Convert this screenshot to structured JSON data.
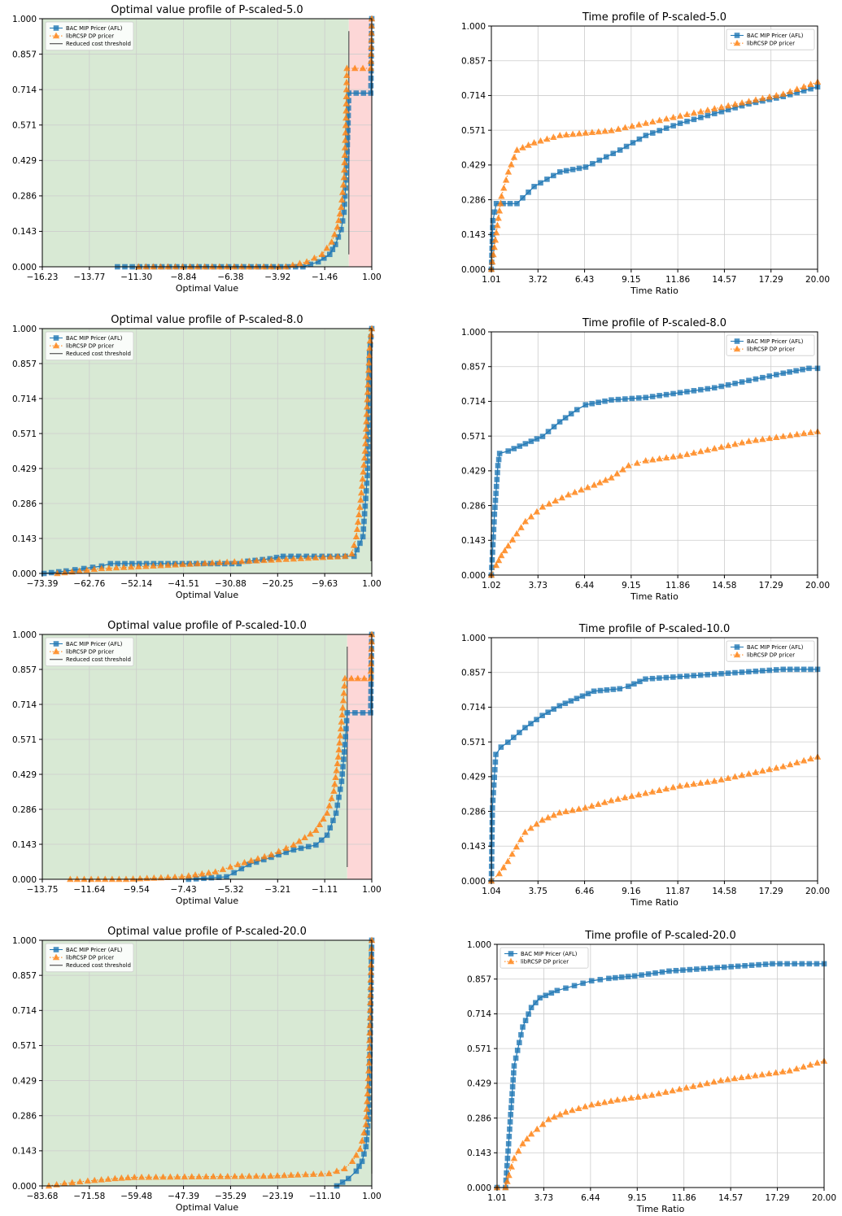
{
  "figure": {
    "background": "#ffffff"
  },
  "colors": {
    "bac": "#1f77b4",
    "lib": "#ff7f0e",
    "threshold": "#555555",
    "green_region": "#d8e9d4",
    "red_region": "#fdd7d7",
    "grid": "#cccccc"
  },
  "legend_labels": {
    "bac": "BAC MIP Pricer (AFL)",
    "lib": "libRCSP DP pricer",
    "threshold": "Reduced cost threshold"
  },
  "chart_data": [
    {
      "type": "line",
      "title": "Optimal value profile of P-scaled-5.0",
      "xlabel": "Optimal Value",
      "ylabel": "",
      "xticks": [
        "−16.23",
        "−13.77",
        "−11.30",
        "−8.84",
        "−6.38",
        "−3.92",
        "−1.46",
        "1.00"
      ],
      "yticks": [
        "0.000",
        "0.143",
        "0.286",
        "0.429",
        "0.571",
        "0.714",
        "0.857",
        "1.000"
      ],
      "xlim": [
        -16.23,
        1.0
      ],
      "ylim": [
        0,
        1
      ],
      "grid": true,
      "legend": "top-left",
      "threshold": -0.2,
      "green_until": -0.2,
      "series": [
        {
          "key": "bac",
          "marker": "square",
          "line": "solid",
          "x": [
            -12.3,
            -2.6,
            -1.8,
            -1.2,
            -0.9,
            -0.6,
            -0.45,
            -0.35,
            -0.25,
            -0.2,
            0.95,
            1.0
          ],
          "y": [
            0.0,
            0.0,
            0.02,
            0.05,
            0.09,
            0.15,
            0.22,
            0.35,
            0.55,
            0.7,
            0.7,
            1.0
          ]
        },
        {
          "key": "lib",
          "marker": "triangle",
          "line": "dotted",
          "x": [
            -11.2,
            -3.5,
            -2.4,
            -1.6,
            -1.1,
            -0.8,
            -0.6,
            -0.45,
            -0.35,
            -0.3,
            0.95,
            1.0
          ],
          "y": [
            0.0,
            0.0,
            0.02,
            0.05,
            0.1,
            0.16,
            0.24,
            0.36,
            0.6,
            0.8,
            0.8,
            1.0
          ]
        }
      ]
    },
    {
      "type": "line",
      "title": "Time profile of P-scaled-5.0",
      "xlabel": "Time Ratio",
      "ylabel": "",
      "xticks": [
        "1.01",
        "3.72",
        "6.43",
        "9.15",
        "11.86",
        "14.57",
        "17.29",
        "20.00"
      ],
      "yticks": [
        "0.000",
        "0.143",
        "0.286",
        "0.429",
        "0.571",
        "0.714",
        "0.857",
        "1.000"
      ],
      "xlim": [
        1.01,
        20.0
      ],
      "ylim": [
        0,
        1
      ],
      "grid": true,
      "legend": "top-right",
      "series": [
        {
          "key": "bac",
          "marker": "square",
          "line": "solid",
          "x": [
            1.01,
            1.1,
            1.3,
            2.5,
            3.5,
            5.0,
            6.5,
            8.5,
            10.0,
            12.0,
            14.0,
            16.0,
            18.0,
            20.0
          ],
          "y": [
            0.0,
            0.2,
            0.27,
            0.27,
            0.34,
            0.4,
            0.42,
            0.49,
            0.55,
            0.6,
            0.64,
            0.68,
            0.71,
            0.75
          ]
        },
        {
          "key": "lib",
          "marker": "triangle",
          "line": "dotted",
          "x": [
            1.01,
            1.3,
            1.6,
            2.0,
            2.5,
            3.5,
            5.0,
            6.5,
            8.0,
            10.0,
            12.0,
            14.0,
            16.0,
            18.0,
            20.0
          ],
          "y": [
            0.0,
            0.15,
            0.3,
            0.4,
            0.49,
            0.52,
            0.55,
            0.56,
            0.57,
            0.6,
            0.63,
            0.66,
            0.69,
            0.72,
            0.77
          ]
        }
      ]
    },
    {
      "type": "line",
      "title": "Optimal value profile of P-scaled-8.0",
      "xlabel": "Optimal Value",
      "ylabel": "",
      "xticks": [
        "−73.39",
        "−62.76",
        "−52.14",
        "−41.51",
        "−30.88",
        "−20.25",
        "−9.63",
        "1.00"
      ],
      "yticks": [
        "0.000",
        "0.143",
        "0.286",
        "0.429",
        "0.571",
        "0.714",
        "0.857",
        "1.000"
      ],
      "xlim": [
        -73.39,
        1.0
      ],
      "ylim": [
        0,
        1
      ],
      "grid": true,
      "legend": "top-left",
      "threshold": 0.8,
      "green_until": 1.0,
      "series": [
        {
          "key": "bac",
          "marker": "square",
          "line": "solid",
          "x": [
            -73.0,
            -68.0,
            -64.0,
            -60.0,
            -58.0,
            -45.0,
            -29.0,
            -27.0,
            -22.0,
            -19.0,
            -5.0,
            -3.0,
            -1.0,
            0.0,
            0.5,
            1.0
          ],
          "y": [
            0.0,
            0.01,
            0.02,
            0.03,
            0.04,
            0.04,
            0.04,
            0.05,
            0.06,
            0.07,
            0.07,
            0.07,
            0.15,
            0.4,
            0.9,
            1.0
          ]
        },
        {
          "key": "lib",
          "marker": "triangle",
          "line": "dotted",
          "x": [
            -70.0,
            -65.0,
            -60.0,
            -5.0,
            -3.5,
            -2.5,
            -1.5,
            -0.5,
            0.2,
            0.6,
            1.0
          ],
          "y": [
            0.0,
            0.01,
            0.02,
            0.07,
            0.08,
            0.15,
            0.3,
            0.5,
            0.8,
            0.95,
            1.0
          ]
        }
      ]
    },
    {
      "type": "line",
      "title": "Time profile of P-scaled-8.0",
      "xlabel": "Time Ratio",
      "ylabel": "",
      "xticks": [
        "1.02",
        "3.73",
        "6.44",
        "9.15",
        "11.86",
        "14.58",
        "17.29",
        "20.00"
      ],
      "yticks": [
        "0.000",
        "0.143",
        "0.286",
        "0.429",
        "0.571",
        "0.714",
        "0.857",
        "1.000"
      ],
      "xlim": [
        1.02,
        20.0
      ],
      "ylim": [
        0,
        1
      ],
      "grid": true,
      "legend": "top-right",
      "series": [
        {
          "key": "bac",
          "marker": "square",
          "line": "solid",
          "x": [
            1.02,
            1.2,
            1.4,
            1.5,
            2.0,
            3.0,
            4.0,
            5.0,
            6.0,
            6.5,
            8.0,
            10.0,
            12.0,
            14.0,
            16.0,
            18.0,
            19.5,
            20.0
          ],
          "y": [
            0.0,
            0.25,
            0.45,
            0.5,
            0.51,
            0.54,
            0.57,
            0.63,
            0.68,
            0.7,
            0.72,
            0.73,
            0.75,
            0.77,
            0.8,
            0.83,
            0.85,
            0.85
          ]
        },
        {
          "key": "lib",
          "marker": "triangle",
          "line": "dotted",
          "x": [
            1.02,
            1.3,
            1.6,
            2.0,
            3.0,
            4.0,
            5.5,
            7.0,
            8.0,
            9.0,
            10.0,
            12.0,
            14.0,
            16.0,
            18.0,
            20.0
          ],
          "y": [
            0.0,
            0.04,
            0.08,
            0.12,
            0.22,
            0.28,
            0.33,
            0.37,
            0.4,
            0.45,
            0.47,
            0.49,
            0.52,
            0.55,
            0.57,
            0.59
          ]
        }
      ]
    },
    {
      "type": "line",
      "title": "Optimal value profile of P-scaled-10.0",
      "xlabel": "Optimal Value",
      "ylabel": "",
      "xticks": [
        "−13.75",
        "−11.64",
        "−9.54",
        "−7.43",
        "−5.32",
        "−3.21",
        "−1.11",
        "1.00"
      ],
      "yticks": [
        "0.000",
        "0.143",
        "0.286",
        "0.429",
        "0.571",
        "0.714",
        "0.857",
        "1.000"
      ],
      "xlim": [
        -13.75,
        1.0
      ],
      "ylim": [
        0,
        1
      ],
      "grid": true,
      "legend": "top-left",
      "threshold": -0.1,
      "green_until": -0.1,
      "series": [
        {
          "key": "bac",
          "marker": "square",
          "line": "solid",
          "x": [
            -7.2,
            -5.5,
            -4.5,
            -3.5,
            -2.5,
            -1.5,
            -1.0,
            -0.6,
            -0.35,
            -0.2,
            -0.1,
            0.95,
            1.0
          ],
          "y": [
            0.0,
            0.01,
            0.06,
            0.09,
            0.12,
            0.14,
            0.18,
            0.27,
            0.4,
            0.55,
            0.68,
            0.68,
            1.0
          ]
        },
        {
          "key": "lib",
          "marker": "triangle",
          "line": "dotted",
          "x": [
            -12.5,
            -10.0,
            -7.5,
            -6.0,
            -5.0,
            -3.5,
            -2.5,
            -1.5,
            -1.0,
            -0.7,
            -0.5,
            -0.3,
            -0.2,
            0.95,
            1.0
          ],
          "y": [
            0.0,
            0.0,
            0.01,
            0.03,
            0.06,
            0.1,
            0.14,
            0.2,
            0.27,
            0.36,
            0.5,
            0.7,
            0.82,
            0.82,
            1.0
          ]
        }
      ]
    },
    {
      "type": "line",
      "title": "Time profile of P-scaled-10.0",
      "xlabel": "Time Ratio",
      "ylabel": "",
      "xticks": [
        "1.04",
        "3.75",
        "6.46",
        "9.16",
        "11.87",
        "14.58",
        "17.29",
        "20.00"
      ],
      "yticks": [
        "0.000",
        "0.143",
        "0.286",
        "0.429",
        "0.571",
        "0.714",
        "0.857",
        "1.000"
      ],
      "xlim": [
        1.04,
        20.0
      ],
      "ylim": [
        0,
        1
      ],
      "grid": true,
      "legend": "top-right",
      "series": [
        {
          "key": "bac",
          "marker": "square",
          "line": "solid",
          "x": [
            1.04,
            1.1,
            1.3,
            1.6,
            2.0,
            3.0,
            4.0,
            5.0,
            6.0,
            7.0,
            8.5,
            9.0,
            10.0,
            12.0,
            14.0,
            16.0,
            18.0,
            20.0
          ],
          "y": [
            0.0,
            0.3,
            0.52,
            0.55,
            0.57,
            0.63,
            0.68,
            0.72,
            0.75,
            0.78,
            0.79,
            0.8,
            0.83,
            0.84,
            0.85,
            0.86,
            0.87,
            0.87
          ]
        },
        {
          "key": "lib",
          "marker": "triangle",
          "line": "dotted",
          "x": [
            1.04,
            1.5,
            2.0,
            2.5,
            3.0,
            4.0,
            5.0,
            6.5,
            8.0,
            10.0,
            12.0,
            14.0,
            16.0,
            18.0,
            20.0
          ],
          "y": [
            0.0,
            0.03,
            0.08,
            0.14,
            0.2,
            0.25,
            0.28,
            0.3,
            0.33,
            0.36,
            0.39,
            0.41,
            0.44,
            0.47,
            0.51
          ]
        }
      ]
    },
    {
      "type": "line",
      "title": "Optimal value profile of P-scaled-20.0",
      "xlabel": "Optimal Value",
      "ylabel": "",
      "xticks": [
        "−83.68",
        "−71.58",
        "−59.48",
        "−47.39",
        "−35.29",
        "−23.19",
        "−11.10",
        "1.00"
      ],
      "yticks": [
        "0.000",
        "0.143",
        "0.286",
        "0.429",
        "0.571",
        "0.714",
        "0.857",
        "1.000"
      ],
      "xlim": [
        -83.68,
        1.0
      ],
      "ylim": [
        0,
        1
      ],
      "grid": true,
      "legend": "top-left",
      "threshold": 1.0,
      "green_until": 1.0,
      "series": [
        {
          "key": "bac",
          "marker": "square",
          "line": "solid",
          "x": [
            -8.0,
            -5.0,
            -3.0,
            -1.5,
            -0.5,
            0.3,
            0.8,
            1.0
          ],
          "y": [
            0.0,
            0.03,
            0.06,
            0.1,
            0.16,
            0.3,
            0.8,
            1.0
          ]
        },
        {
          "key": "lib",
          "marker": "triangle",
          "line": "dotted",
          "x": [
            -82.0,
            -78.0,
            -72.0,
            -65.0,
            -60.0,
            -25.0,
            -18.0,
            -10.0,
            -6.0,
            -4.0,
            -2.0,
            -0.5,
            0.3,
            0.8,
            1.0
          ],
          "y": [
            0.0,
            0.01,
            0.02,
            0.03,
            0.035,
            0.04,
            0.045,
            0.05,
            0.07,
            0.1,
            0.15,
            0.25,
            0.5,
            0.9,
            1.0
          ]
        }
      ]
    },
    {
      "type": "line",
      "title": "Time profile of P-scaled-20.0",
      "xlabel": "Time Ratio",
      "ylabel": "",
      "xticks": [
        "1.01",
        "3.73",
        "6.44",
        "9.15",
        "11.86",
        "14.57",
        "17.29",
        "20.00"
      ],
      "yticks": [
        "0.000",
        "0.143",
        "0.286",
        "0.429",
        "0.571",
        "0.714",
        "0.857",
        "1.000"
      ],
      "xlim": [
        1.01,
        20.0
      ],
      "ylim": [
        0,
        1
      ],
      "grid": true,
      "legend": "top-left",
      "series": [
        {
          "key": "bac",
          "marker": "square",
          "line": "solid",
          "x": [
            1.01,
            1.5,
            1.8,
            2.0,
            2.5,
            3.0,
            3.5,
            4.5,
            5.5,
            6.5,
            7.5,
            9.0,
            11.0,
            13.0,
            15.0,
            17.0,
            20.0
          ],
          "y": [
            0.0,
            0.0,
            0.3,
            0.5,
            0.66,
            0.74,
            0.78,
            0.81,
            0.83,
            0.85,
            0.86,
            0.87,
            0.89,
            0.9,
            0.91,
            0.92,
            0.92
          ]
        },
        {
          "key": "lib",
          "marker": "triangle",
          "line": "dotted",
          "x": [
            1.01,
            1.5,
            1.7,
            2.0,
            2.5,
            3.0,
            4.0,
            5.0,
            6.5,
            8.0,
            10.0,
            12.0,
            14.0,
            16.0,
            18.0,
            20.0
          ],
          "y": [
            0.0,
            0.0,
            0.05,
            0.12,
            0.18,
            0.22,
            0.28,
            0.31,
            0.34,
            0.36,
            0.38,
            0.41,
            0.44,
            0.46,
            0.48,
            0.52
          ]
        }
      ]
    }
  ]
}
